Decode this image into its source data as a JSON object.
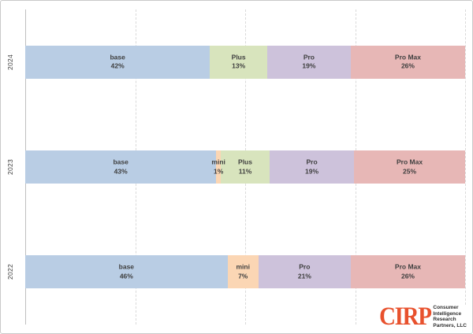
{
  "chart_data": {
    "type": "bar",
    "orientation": "horizontal-stacked",
    "unit": "%",
    "title": "",
    "categories": [
      "base",
      "mini",
      "Plus",
      "Pro",
      "Pro Max"
    ],
    "colors": {
      "base": "#b9cde4",
      "mini": "#fbd6b4",
      "Plus": "#d8e4bd",
      "Pro": "#cdc2db",
      "Pro Max": "#e7b7b6"
    },
    "rows": [
      {
        "year": "2024",
        "segments": [
          {
            "label": "base",
            "value": 42
          },
          {
            "label": "Plus",
            "value": 13
          },
          {
            "label": "Pro",
            "value": 19
          },
          {
            "label": "Pro Max",
            "value": 26
          }
        ]
      },
      {
        "year": "2023",
        "segments": [
          {
            "label": "base",
            "value": 43
          },
          {
            "label": "mini",
            "value": 1
          },
          {
            "label": "Plus",
            "value": 11
          },
          {
            "label": "Pro",
            "value": 19
          },
          {
            "label": "Pro Max",
            "value": 25
          }
        ]
      },
      {
        "year": "2022",
        "segments": [
          {
            "label": "base",
            "value": 46
          },
          {
            "label": "mini",
            "value": 7
          },
          {
            "label": "Pro",
            "value": 21
          },
          {
            "label": "Pro Max",
            "value": 26
          }
        ]
      }
    ],
    "x_gridlines_pct": [
      25,
      50,
      75,
      100
    ],
    "xlim": [
      0,
      100
    ],
    "grid": "dashed-vertical",
    "legend": "none",
    "axis_line_color": "#bfbfbf",
    "gridline_color": "#d9d9d9",
    "label_color": "#3f3f3f"
  },
  "logo": {
    "abbr": "CIRP",
    "abbr_color": "#e8512d",
    "lines": [
      "Consumer",
      "Intelligence",
      "Research",
      "Partners, LLC"
    ]
  }
}
